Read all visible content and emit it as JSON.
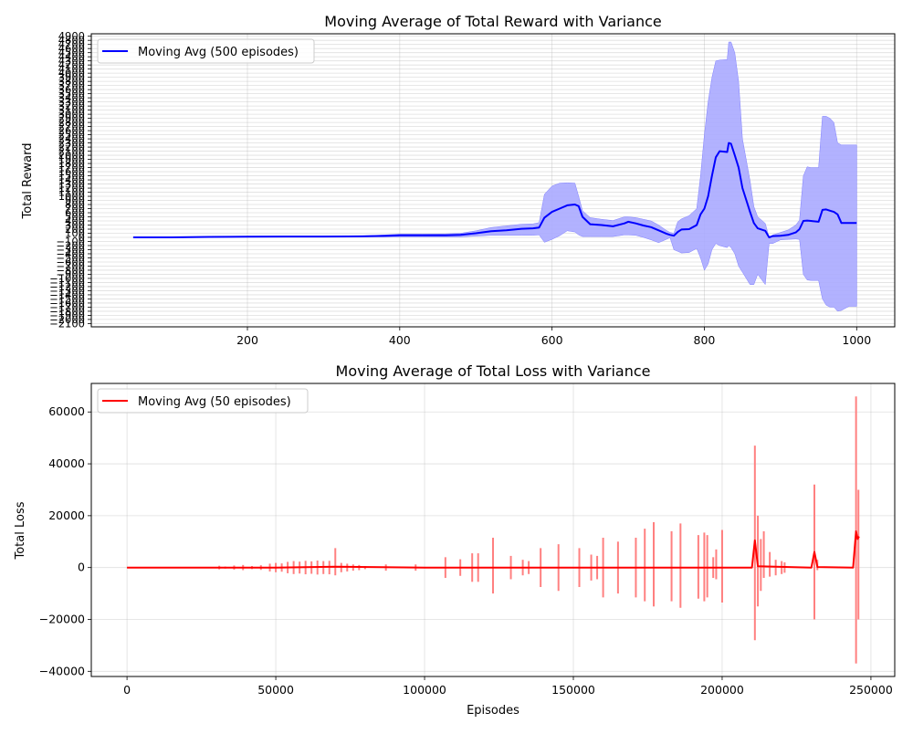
{
  "chart_data": [
    {
      "type": "line",
      "title": "Moving Average of Total Reward with Variance",
      "xlabel": "",
      "ylabel": "Total Reward",
      "xlim": [
        -5,
        1050
      ],
      "ylim": [
        -2180,
        4960
      ],
      "xticks": [
        200,
        400,
        600,
        800,
        1000
      ],
      "yticks": [
        -2100,
        -2000,
        -1900,
        -1800,
        -1700,
        -1600,
        -1500,
        -1400,
        -1300,
        -1200,
        -1100,
        -1000,
        -900,
        -800,
        -700,
        -600,
        -500,
        -400,
        -300,
        -200,
        -100,
        0,
        100,
        200,
        300,
        400,
        500,
        600,
        700,
        800,
        900,
        1000,
        1100,
        1200,
        1300,
        1400,
        1500,
        1600,
        1700,
        1800,
        1900,
        2000,
        2100,
        2200,
        2300,
        2400,
        2500,
        2600,
        2700,
        2800,
        2900,
        3000,
        3100,
        3200,
        3300,
        3400,
        3500,
        3600,
        3700,
        3800,
        3900,
        4000,
        4100,
        4200,
        4300,
        4400,
        4500,
        4600,
        4700,
        4800,
        4900
      ],
      "grid": true,
      "legend": "upper left",
      "series": [
        {
          "name": "Moving Avg (500 episodes)",
          "color": "#0000ff",
          "band_color": "#aaaaff",
          "x": [
            50,
            100,
            150,
            200,
            250,
            300,
            350,
            380,
            400,
            430,
            460,
            480,
            500,
            520,
            540,
            560,
            575,
            583,
            590,
            600,
            610,
            620,
            630,
            635,
            640,
            650,
            665,
            680,
            695,
            700,
            710,
            720,
            730,
            740,
            750,
            755,
            760,
            765,
            770,
            780,
            790,
            795,
            800,
            805,
            810,
            815,
            820,
            830,
            832,
            835,
            840,
            845,
            850,
            860,
            865,
            870,
            880,
            885,
            890,
            900,
            910,
            920,
            925,
            930,
            935,
            940,
            950,
            955,
            960,
            965,
            970,
            975,
            980,
            990,
            1000
          ],
          "y": [
            0,
            0,
            10,
            15,
            20,
            20,
            25,
            35,
            50,
            50,
            50,
            60,
            100,
            150,
            170,
            210,
            220,
            240,
            480,
            620,
            700,
            780,
            800,
            760,
            500,
            320,
            300,
            270,
            340,
            380,
            340,
            290,
            250,
            170,
            90,
            60,
            40,
            130,
            190,
            200,
            300,
            560,
            700,
            1000,
            1500,
            1950,
            2100,
            2080,
            2300,
            2280,
            2000,
            1700,
            1200,
            620,
            350,
            220,
            160,
            0,
            30,
            40,
            60,
            120,
            200,
            400,
            410,
            400,
            380,
            670,
            680,
            650,
            620,
            560,
            350,
            350,
            350
          ],
          "upper": [
            0,
            0,
            15,
            20,
            25,
            25,
            35,
            60,
            80,
            80,
            85,
            100,
            160,
            240,
            280,
            320,
            330,
            360,
            1050,
            1250,
            1320,
            1330,
            1320,
            1000,
            650,
            480,
            440,
            410,
            500,
            500,
            480,
            440,
            400,
            300,
            170,
            120,
            100,
            380,
            450,
            530,
            700,
            1500,
            2500,
            3300,
            3900,
            4300,
            4320,
            4330,
            4760,
            4760,
            4500,
            3800,
            2400,
            1380,
            750,
            500,
            340,
            0,
            60,
            120,
            180,
            300,
            420,
            1500,
            1720,
            1700,
            1700,
            2950,
            2950,
            2900,
            2800,
            2300,
            2250,
            2250,
            2250
          ],
          "lower": [
            0,
            0,
            0,
            10,
            15,
            15,
            15,
            10,
            10,
            10,
            10,
            10,
            30,
            50,
            50,
            50,
            50,
            60,
            -120,
            -50,
            40,
            160,
            130,
            60,
            20,
            20,
            20,
            20,
            60,
            60,
            50,
            0,
            -60,
            -130,
            -50,
            -10,
            -300,
            -340,
            -380,
            -370,
            -270,
            -500,
            -800,
            -650,
            -300,
            -150,
            -200,
            -250,
            -200,
            -250,
            -400,
            -700,
            -850,
            -1150,
            -1150,
            -900,
            -1150,
            -150,
            -150,
            -60,
            -50,
            -40,
            -50,
            -900,
            -1040,
            -1050,
            -1050,
            -1500,
            -1650,
            -1700,
            -1700,
            -1800,
            -1780,
            -1680,
            -1680
          ]
        }
      ]
    },
    {
      "type": "line",
      "title": "Moving Average of Total Loss with Variance",
      "xlabel": "Episodes",
      "ylabel": "Total Loss",
      "xlim": [
        -12000,
        258000
      ],
      "ylim": [
        -42000,
        71000
      ],
      "xticks": [
        0,
        50000,
        100000,
        150000,
        200000,
        250000
      ],
      "yticks": [
        -40000,
        -20000,
        0,
        20000,
        40000,
        60000
      ],
      "grid": true,
      "legend": "upper left",
      "series": [
        {
          "name": "Moving Avg (50 episodes)",
          "color": "#ff0000",
          "band_color": "#ff8080",
          "x": [
            0,
            50000,
            70000,
            100000,
            150000,
            200000,
            210000,
            211000,
            212000,
            230000,
            231000,
            232000,
            244000,
            245000,
            245500,
            246000
          ],
          "y": [
            0,
            0,
            300,
            0,
            0,
            0,
            0,
            10500,
            500,
            0,
            6000,
            200,
            0,
            14000,
            11000,
            12000
          ],
          "spikes": [
            {
              "x": 31000,
              "high": 700,
              "low": -700
            },
            {
              "x": 33000,
              "high": 400,
              "low": -400
            },
            {
              "x": 36000,
              "high": 800,
              "low": -800
            },
            {
              "x": 39000,
              "high": 1000,
              "low": -1000
            },
            {
              "x": 42000,
              "high": 600,
              "low": -600
            },
            {
              "x": 45000,
              "high": 900,
              "low": -900
            },
            {
              "x": 48000,
              "high": 1500,
              "low": -1500
            },
            {
              "x": 50000,
              "high": 1800,
              "low": -1800
            },
            {
              "x": 52000,
              "high": 1600,
              "low": -1600
            },
            {
              "x": 54000,
              "high": 2200,
              "low": -2200
            },
            {
              "x": 56000,
              "high": 2500,
              "low": -2500
            },
            {
              "x": 58000,
              "high": 2300,
              "low": -2300
            },
            {
              "x": 60000,
              "high": 2600,
              "low": -2600
            },
            {
              "x": 62000,
              "high": 2400,
              "low": -2400
            },
            {
              "x": 64000,
              "high": 2700,
              "low": -2700
            },
            {
              "x": 66000,
              "high": 2500,
              "low": -2500
            },
            {
              "x": 68000,
              "high": 2600,
              "low": -2600
            },
            {
              "x": 70000,
              "high": 7500,
              "low": -3000
            },
            {
              "x": 72000,
              "high": 1800,
              "low": -1800
            },
            {
              "x": 74000,
              "high": 1500,
              "low": -1500
            },
            {
              "x": 76000,
              "high": 1200,
              "low": -1200
            },
            {
              "x": 78000,
              "high": 1000,
              "low": -1000
            },
            {
              "x": 80000,
              "high": 600,
              "low": -600
            },
            {
              "x": 87000,
              "high": 1200,
              "low": -1200
            },
            {
              "x": 97000,
              "high": 1200,
              "low": -1200
            },
            {
              "x": 107000,
              "high": 4000,
              "low": -4000
            },
            {
              "x": 112000,
              "high": 3200,
              "low": -3200
            },
            {
              "x": 116000,
              "high": 5500,
              "low": -5500
            },
            {
              "x": 118000,
              "high": 5500,
              "low": -5500
            },
            {
              "x": 123000,
              "high": 11500,
              "low": -10000
            },
            {
              "x": 129000,
              "high": 4500,
              "low": -4500
            },
            {
              "x": 133000,
              "high": 3000,
              "low": -3000
            },
            {
              "x": 135000,
              "high": 2500,
              "low": -2500
            },
            {
              "x": 139000,
              "high": 7500,
              "low": -7500
            },
            {
              "x": 145000,
              "high": 9000,
              "low": -9000
            },
            {
              "x": 152000,
              "high": 7500,
              "low": -7500
            },
            {
              "x": 156000,
              "high": 5000,
              "low": -5000
            },
            {
              "x": 158000,
              "high": 4500,
              "low": -4500
            },
            {
              "x": 160000,
              "high": 11500,
              "low": -11500
            },
            {
              "x": 165000,
              "high": 10000,
              "low": -10000
            },
            {
              "x": 171000,
              "high": 11500,
              "low": -11500
            },
            {
              "x": 174000,
              "high": 15000,
              "low": -13000
            },
            {
              "x": 177000,
              "high": 17500,
              "low": -15000
            },
            {
              "x": 183000,
              "high": 14000,
              "low": -13000
            },
            {
              "x": 186000,
              "high": 17000,
              "low": -15500
            },
            {
              "x": 192000,
              "high": 12500,
              "low": -12000
            },
            {
              "x": 194000,
              "high": 13500,
              "low": -13000
            },
            {
              "x": 195000,
              "high": 12500,
              "low": -11500
            },
            {
              "x": 197000,
              "high": 4000,
              "low": -4000
            },
            {
              "x": 198000,
              "high": 7000,
              "low": -4500
            },
            {
              "x": 200000,
              "high": 14500,
              "low": -13500
            },
            {
              "x": 211000,
              "high": 47000,
              "low": -28000
            },
            {
              "x": 212000,
              "high": 20000,
              "low": -15000
            },
            {
              "x": 213000,
              "high": 11000,
              "low": -9000
            },
            {
              "x": 214000,
              "high": 14000,
              "low": -4000
            },
            {
              "x": 216000,
              "high": 6000,
              "low": -3500
            },
            {
              "x": 218000,
              "high": 3000,
              "low": -3000
            },
            {
              "x": 220000,
              "high": 2500,
              "low": -2500
            },
            {
              "x": 221000,
              "high": 2000,
              "low": -2000
            },
            {
              "x": 231000,
              "high": 32000,
              "low": -20000
            },
            {
              "x": 232000,
              "high": 3000,
              "low": -1000
            },
            {
              "x": 245000,
              "high": 66000,
              "low": -37000
            },
            {
              "x": 245800,
              "high": 30000,
              "low": -20000
            }
          ]
        }
      ]
    }
  ]
}
